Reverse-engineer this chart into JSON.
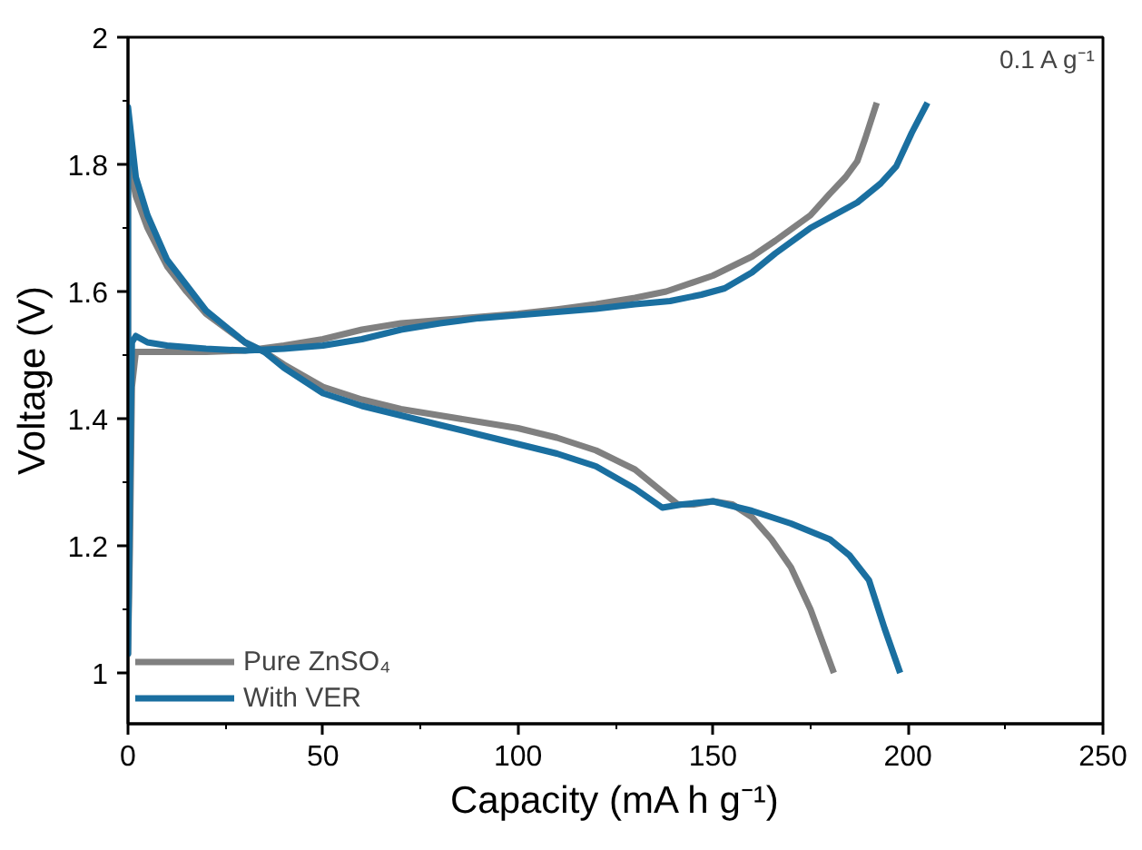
{
  "chart_data": {
    "type": "line",
    "xlabel": "Capacity (mA h g⁻¹)",
    "ylabel": "Voltage (V)",
    "annotations": [
      "0.1 A g⁻¹"
    ],
    "xlim": [
      0,
      250
    ],
    "ylim": [
      0.92,
      2
    ],
    "xticks": [
      0,
      50,
      100,
      150,
      200,
      250
    ],
    "yticks": [
      1,
      1.2,
      1.4,
      1.6,
      1.8,
      2
    ],
    "grid": false,
    "legend": "bottom left",
    "marker": "none",
    "line_style": "solid",
    "series": [
      {
        "name": "Pure ZnSO₄",
        "color": "#808080",
        "x": [
          192,
          189,
          187,
          184,
          180,
          175,
          166,
          160,
          150,
          138,
          130,
          120,
          110,
          100,
          90,
          80,
          70,
          60,
          50,
          40,
          30,
          20,
          5,
          2,
          1,
          0.5,
          0,
          0,
          0.5,
          2,
          5,
          10,
          15,
          20,
          30,
          35,
          40,
          50,
          60,
          70,
          80,
          90,
          100,
          110,
          120,
          130,
          136,
          141,
          145,
          150,
          155,
          160,
          165,
          170,
          175,
          181
        ],
        "values": [
          1.897,
          1.84,
          1.805,
          1.78,
          1.754,
          1.72,
          1.68,
          1.655,
          1.625,
          1.6,
          1.59,
          1.58,
          1.572,
          1.565,
          1.56,
          1.555,
          1.55,
          1.54,
          1.525,
          1.515,
          1.507,
          1.505,
          1.505,
          1.505,
          1.45,
          1.2,
          1.03,
          1.88,
          1.8,
          1.75,
          1.7,
          1.64,
          1.6,
          1.565,
          1.52,
          1.505,
          1.485,
          1.45,
          1.43,
          1.415,
          1.405,
          1.395,
          1.385,
          1.37,
          1.35,
          1.32,
          1.29,
          1.265,
          1.265,
          1.27,
          1.265,
          1.245,
          1.21,
          1.166,
          1.1,
          1.0
        ]
      },
      {
        "name": "With VER",
        "color": "#1a6fa0",
        "x": [
          205,
          201,
          197,
          193,
          187,
          175,
          166,
          160,
          153,
          147,
          139,
          130,
          120,
          110,
          100,
          90,
          80,
          70,
          60,
          50,
          40,
          30,
          20,
          10,
          5,
          2,
          1,
          0.5,
          0,
          0,
          2,
          5,
          10,
          20,
          30,
          35,
          40,
          50,
          60,
          70,
          80,
          90,
          100,
          110,
          120,
          130,
          137,
          142,
          150,
          160,
          170,
          180,
          183,
          185,
          190,
          194,
          198
        ],
        "values": [
          1.897,
          1.85,
          1.797,
          1.77,
          1.74,
          1.7,
          1.66,
          1.63,
          1.605,
          1.595,
          1.585,
          1.58,
          1.573,
          1.568,
          1.563,
          1.558,
          1.55,
          1.54,
          1.525,
          1.515,
          1.51,
          1.507,
          1.51,
          1.515,
          1.52,
          1.53,
          1.52,
          1.3,
          1.03,
          1.89,
          1.78,
          1.72,
          1.65,
          1.57,
          1.52,
          1.505,
          1.48,
          1.44,
          1.42,
          1.405,
          1.39,
          1.375,
          1.36,
          1.345,
          1.325,
          1.29,
          1.26,
          1.265,
          1.27,
          1.255,
          1.235,
          1.21,
          1.195,
          1.185,
          1.146,
          1.07,
          1.0
        ]
      }
    ]
  }
}
